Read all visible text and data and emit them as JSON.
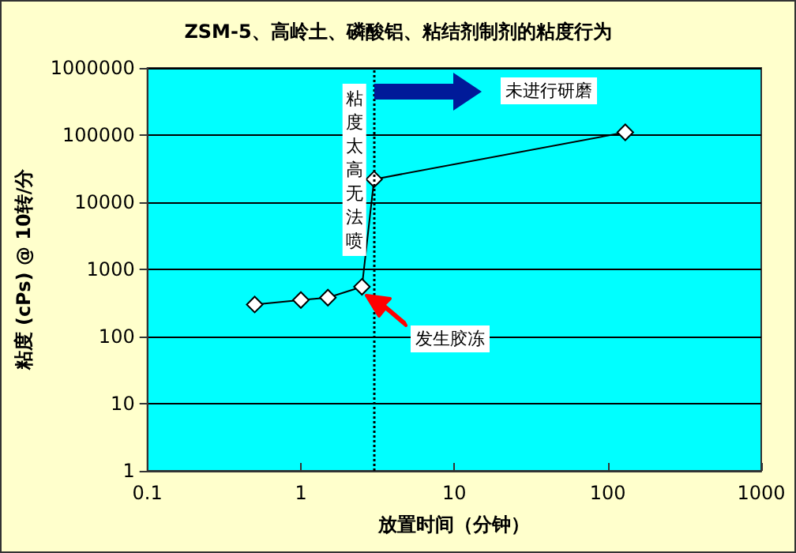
{
  "chart_data": {
    "type": "line",
    "title": "ZSM-5、高岭土、磷酸铝、粘结剂制剂的粘度行为",
    "xlabel": "放置时间（分钟）",
    "ylabel": "粘度 (cPs) @ 10转/分",
    "x": [
      0.5,
      1,
      1.5,
      2.5,
      3,
      130
    ],
    "series": [
      {
        "color": "#000000",
        "values": [
          300,
          350,
          380,
          550,
          22000,
          110000
        ]
      }
    ],
    "log": "xy",
    "xlim": [
      0.1,
      1000
    ],
    "xticks": [
      0.1,
      1,
      10,
      100,
      1000
    ],
    "ylim": [
      1,
      1000000
    ],
    "yticks": [
      1,
      10,
      100,
      1000,
      10000,
      100000,
      1000000
    ],
    "grid": "y",
    "marker": "diamond",
    "line_style": "solid",
    "ref_lines": [
      {
        "axis": "x",
        "value": 3,
        "label": "粘度太高无法喷",
        "line_style": "dotted",
        "color": "#000000"
      }
    ],
    "annotations": [
      "未进行研磨",
      "发生胶冻"
    ]
  }
}
